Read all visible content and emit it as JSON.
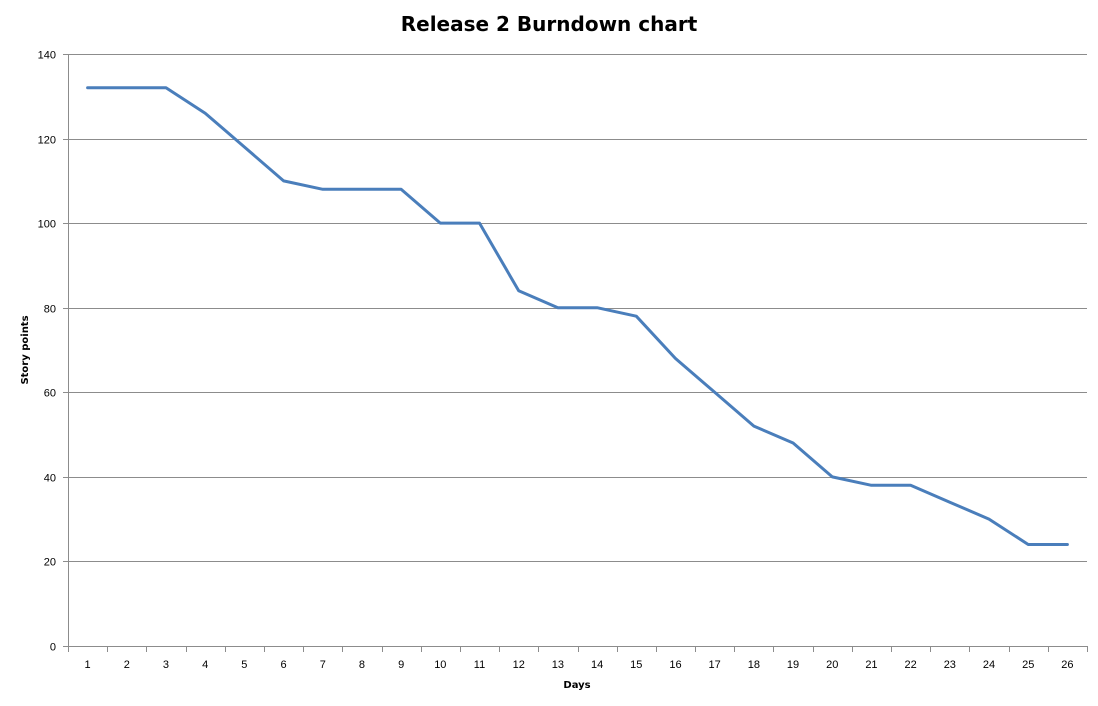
{
  "chart_data": {
    "type": "line",
    "title": "Release 2 Burndown chart",
    "xlabel": "Days",
    "ylabel": "Story points",
    "x": [
      1,
      2,
      3,
      4,
      5,
      6,
      7,
      8,
      9,
      10,
      11,
      12,
      13,
      14,
      15,
      16,
      17,
      18,
      19,
      20,
      21,
      22,
      23,
      24,
      25,
      26
    ],
    "series": [
      {
        "name": "",
        "color": "#4a7ebb",
        "values": [
          132,
          132,
          132,
          126,
          118,
          110,
          108,
          108,
          108,
          100,
          100,
          84,
          80,
          80,
          78,
          68,
          60,
          52,
          48,
          40,
          38,
          38,
          34,
          30,
          24,
          24
        ]
      }
    ],
    "ylim": [
      0,
      140
    ],
    "yticks": [
      0,
      20,
      40,
      60,
      80,
      100,
      120,
      140
    ],
    "grid": true,
    "legend": "none",
    "colors": {
      "gridline": "#8c8c8c",
      "axis": "#8c8c8c"
    }
  }
}
